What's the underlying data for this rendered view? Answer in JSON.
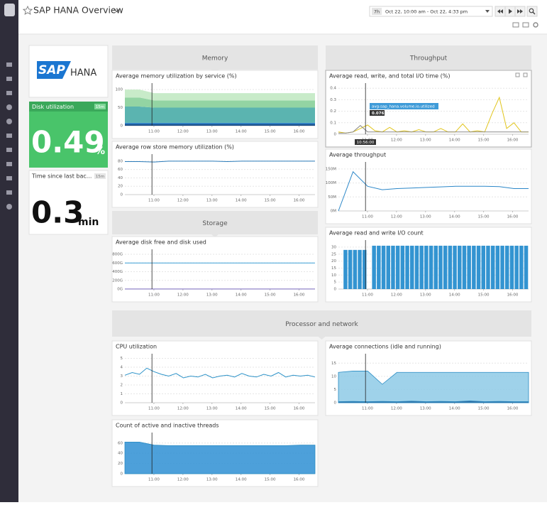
{
  "header": {
    "title": "SAP HANA Overview",
    "range_badge": "7h",
    "range": "Oct 22, 10:00 am - Oct 22, 4:33 pm"
  },
  "logo": {
    "sap": "SAP",
    "hana": "HANA"
  },
  "disk": {
    "title": "Disk utilization",
    "badge": "15m",
    "value": "0.49",
    "unit": "%"
  },
  "backup": {
    "title": "Time since last bac...",
    "badge": "15m",
    "value": "0.3",
    "unit": "min"
  },
  "groups": [
    "Memory",
    "Throughput",
    "Storage",
    "Processor and network"
  ],
  "tooltip": {
    "metric": "avg:sap_hana.volume.io.utilized",
    "value": "0.076",
    "time": "10:56:00"
  },
  "time_axis": {
    "xlim": [
      10,
      16.55
    ],
    "xticks": [
      {
        "value": 11,
        "label": "11:00"
      },
      {
        "value": 12,
        "label": "12:00"
      },
      {
        "value": 13,
        "label": "13:00"
      },
      {
        "value": 14,
        "label": "14:00"
      },
      {
        "value": 15,
        "label": "15:00"
      },
      {
        "value": 16,
        "label": "16:00"
      }
    ]
  },
  "charts": [
    {
      "type": "stacked_area",
      "title": "Average memory utilization by service (%)",
      "ylim": [
        0,
        110
      ],
      "yticks": [
        0,
        50,
        100
      ],
      "series": [
        {
          "color": "#1b4f8a",
          "values": [
            4,
            4,
            4,
            4,
            4,
            4,
            4,
            4,
            4,
            4,
            4,
            4,
            4,
            4
          ]
        },
        {
          "color": "#2f7fc1",
          "values": [
            4,
            4,
            4,
            4,
            4,
            4,
            4,
            4,
            4,
            4,
            4,
            4,
            4,
            4
          ]
        },
        {
          "color": "#5bb4b0",
          "values": [
            45,
            45,
            42,
            42,
            42,
            42,
            42,
            42,
            42,
            42,
            42,
            42,
            42,
            42
          ]
        },
        {
          "color": "#93d4a3",
          "values": [
            25,
            25,
            20,
            20,
            20,
            20,
            20,
            20,
            20,
            20,
            20,
            20,
            20,
            20
          ]
        },
        {
          "color": "#c8ebc9",
          "values": [
            22,
            22,
            20,
            20,
            20,
            20,
            20,
            20,
            20,
            20,
            20,
            20,
            20,
            20
          ]
        }
      ]
    },
    {
      "type": "line",
      "title": "Average row store memory utilization (%)",
      "ylim": [
        0,
        90
      ],
      "yticks": [
        0,
        20,
        40,
        60,
        80
      ],
      "series": [
        {
          "color": "#2b7bb9",
          "values": [
            79,
            79,
            78,
            80,
            80,
            80,
            80,
            79,
            80,
            80,
            80,
            80,
            80,
            80
          ]
        }
      ]
    },
    {
      "type": "line",
      "title": "Average disk free and disk used",
      "ylim": [
        0,
        850
      ],
      "yticks": [
        {
          "value": 0,
          "label": "0G"
        },
        {
          "value": 200,
          "label": "200G"
        },
        {
          "value": 400,
          "label": "400G"
        },
        {
          "value": 600,
          "label": "600G"
        },
        {
          "value": 800,
          "label": "800G"
        }
      ],
      "series": [
        {
          "color": "#3a9fd6",
          "values": [
            600,
            600,
            600,
            600,
            600,
            600,
            600,
            600,
            600,
            600,
            600,
            600,
            600,
            600
          ]
        },
        {
          "color": "#7b6bc0",
          "values": [
            2,
            2,
            2,
            2,
            2,
            2,
            2,
            2,
            2,
            2,
            2,
            2,
            2,
            2
          ]
        }
      ]
    },
    {
      "type": "line",
      "title": "Average read, write, and total I/O time (%)",
      "ylim": [
        0,
        0.42
      ],
      "yticks": [
        0,
        0.1,
        0.2,
        0.3,
        0.4
      ],
      "series": [
        {
          "color": "#e1c51c",
          "values": [
            0.02,
            0.01,
            0.02,
            0.05,
            0.08,
            0.03,
            0.02,
            0.06,
            0.02,
            0.03,
            0.02,
            0.04,
            0.02,
            0.02,
            0.05,
            0.02,
            0.02,
            0.09,
            0.02,
            0.03,
            0.02,
            0.18,
            0.32,
            0.05,
            0.1,
            0.02,
            0.02
          ]
        },
        {
          "color": "#8a8a8a",
          "values": [
            0.01,
            0.01,
            0.02,
            0.076,
            0.02,
            0.02,
            0.02,
            0.02,
            0.02,
            0.02,
            0.02,
            0.02,
            0.02,
            0.02,
            0.02,
            0.02,
            0.02,
            0.02,
            0.02,
            0.02,
            0.02,
            0.02,
            0.02,
            0.02,
            0.02,
            0.02,
            0.02
          ]
        }
      ]
    },
    {
      "type": "line",
      "title": "Average throughput",
      "ylim": [
        0,
        165
      ],
      "yticks": [
        {
          "value": 0,
          "label": "0M"
        },
        {
          "value": 50,
          "label": "50M"
        },
        {
          "value": 100,
          "label": "100M"
        },
        {
          "value": 150,
          "label": "150M"
        }
      ],
      "series": [
        {
          "color": "#2b87c8",
          "values": [
            0,
            140,
            88,
            76,
            80,
            82,
            84,
            86,
            88,
            88,
            88,
            87,
            80,
            80
          ]
        }
      ]
    },
    {
      "type": "bar",
      "title": "Average read and write I/O count",
      "ylim": [
        0,
        33
      ],
      "yticks": [
        0,
        5,
        10,
        15,
        20,
        25,
        30
      ],
      "series": [
        {
          "color": "#3394d1",
          "values": [
            null,
            28,
            28,
            28,
            28,
            28,
            null,
            31,
            31,
            31,
            31,
            31,
            31,
            31,
            31,
            31,
            31,
            31,
            31,
            31,
            31,
            31,
            31,
            31,
            31,
            31,
            31,
            31,
            31,
            31,
            31,
            31,
            31,
            31,
            31,
            31,
            31,
            31,
            31,
            31
          ]
        }
      ]
    },
    {
      "type": "line",
      "title": "CPU utilization",
      "ylim": [
        0,
        5.2
      ],
      "yticks": [
        0,
        1,
        2,
        3,
        4,
        5
      ],
      "series": [
        {
          "color": "#2d93c9",
          "values": [
            3.1,
            3.4,
            3.2,
            3.9,
            3.5,
            3.2,
            3.0,
            3.3,
            2.8,
            3.0,
            2.9,
            3.2,
            2.8,
            3.0,
            3.1,
            2.9,
            3.3,
            3.0,
            2.9,
            3.2,
            3.0,
            3.4,
            2.9,
            3.1,
            3.0,
            3.1,
            2.9
          ]
        }
      ]
    },
    {
      "type": "area",
      "title": "Average connections (idle and running)",
      "ylim": [
        0,
        17.5
      ],
      "yticks": [
        0,
        5,
        10,
        15
      ],
      "series": [
        {
          "color": "#8ecae6",
          "values": [
            11.5,
            12,
            12,
            7,
            11.5,
            11.5,
            11.5,
            11.5,
            11.5,
            11.5,
            11.5,
            11.5,
            11.5,
            11.5
          ]
        },
        {
          "color": "#1f5f99",
          "values": [
            0.4,
            0.5,
            0.4,
            0.5,
            0.4,
            0.6,
            0.4,
            0.5,
            0.4,
            0.7,
            0.4,
            0.5,
            0.4,
            0.4
          ]
        }
      ]
    },
    {
      "type": "area",
      "title": "Count of active and inactive threads",
      "ylim": [
        0,
        75
      ],
      "yticks": [
        0,
        20,
        40,
        60
      ],
      "series": [
        {
          "color": "#2e8fd3",
          "values": [
            62,
            62,
            56,
            55,
            55,
            55,
            55,
            55,
            55,
            55,
            55,
            55,
            56,
            56
          ]
        }
      ]
    }
  ]
}
